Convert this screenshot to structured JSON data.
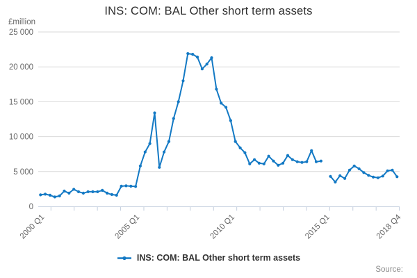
{
  "chart_data": {
    "type": "line",
    "title": "INS: COM: BAL Other short term assets",
    "y_unit": "£million",
    "ylim": [
      0,
      25000
    ],
    "grid": "horizontal",
    "legend_position": "bottom",
    "x_start": "2000 Q1",
    "x_end": "2018 Q4",
    "frequency": "quarterly",
    "n_points": 76,
    "y_ticks": [
      {
        "value": 25000,
        "label": "25 000"
      },
      {
        "value": 20000,
        "label": "20 000"
      },
      {
        "value": 15000,
        "label": "15 000"
      },
      {
        "value": 10000,
        "label": "10 000"
      },
      {
        "value": 5000,
        "label": "5 000"
      },
      {
        "value": 0,
        "label": "0"
      }
    ],
    "x_tick_labels": [
      {
        "index": 0,
        "label": "2000 Q1"
      },
      {
        "index": 20,
        "label": "2005 Q1"
      },
      {
        "index": 40,
        "label": "2010 Q1"
      },
      {
        "index": 60,
        "label": "2015 Q1"
      },
      {
        "index": 75,
        "label": "2018 Q4"
      }
    ],
    "series": [
      {
        "name": "INS: COM: BAL Other short term assets",
        "color": "#1379c4",
        "values": [
          1650,
          1750,
          1600,
          1350,
          1500,
          2200,
          1900,
          2450,
          2100,
          1900,
          2100,
          2100,
          2100,
          2300,
          1900,
          1700,
          1600,
          2900,
          2950,
          2900,
          2860,
          5800,
          7800,
          9000,
          13400,
          5600,
          7800,
          9300,
          12600,
          15000,
          18000,
          21900,
          21800,
          21400,
          19700,
          20400,
          21300,
          16800,
          14800,
          14200,
          12300,
          9300,
          8400,
          7700,
          6100,
          6700,
          6200,
          6100,
          7200,
          6500,
          5900,
          6200,
          7300,
          6700,
          6400,
          6300,
          6400,
          8000,
          6400,
          6500,
          null,
          4300,
          3500,
          4400,
          4000,
          5200,
          5800,
          5400,
          4850,
          4450,
          4200,
          4100,
          4350,
          5100,
          5200,
          4250
        ]
      }
    ]
  },
  "source_label": "Source:",
  "colors": {
    "grid": "#d9d9d9",
    "axis": "#c3cede",
    "label_text": "#666666"
  }
}
